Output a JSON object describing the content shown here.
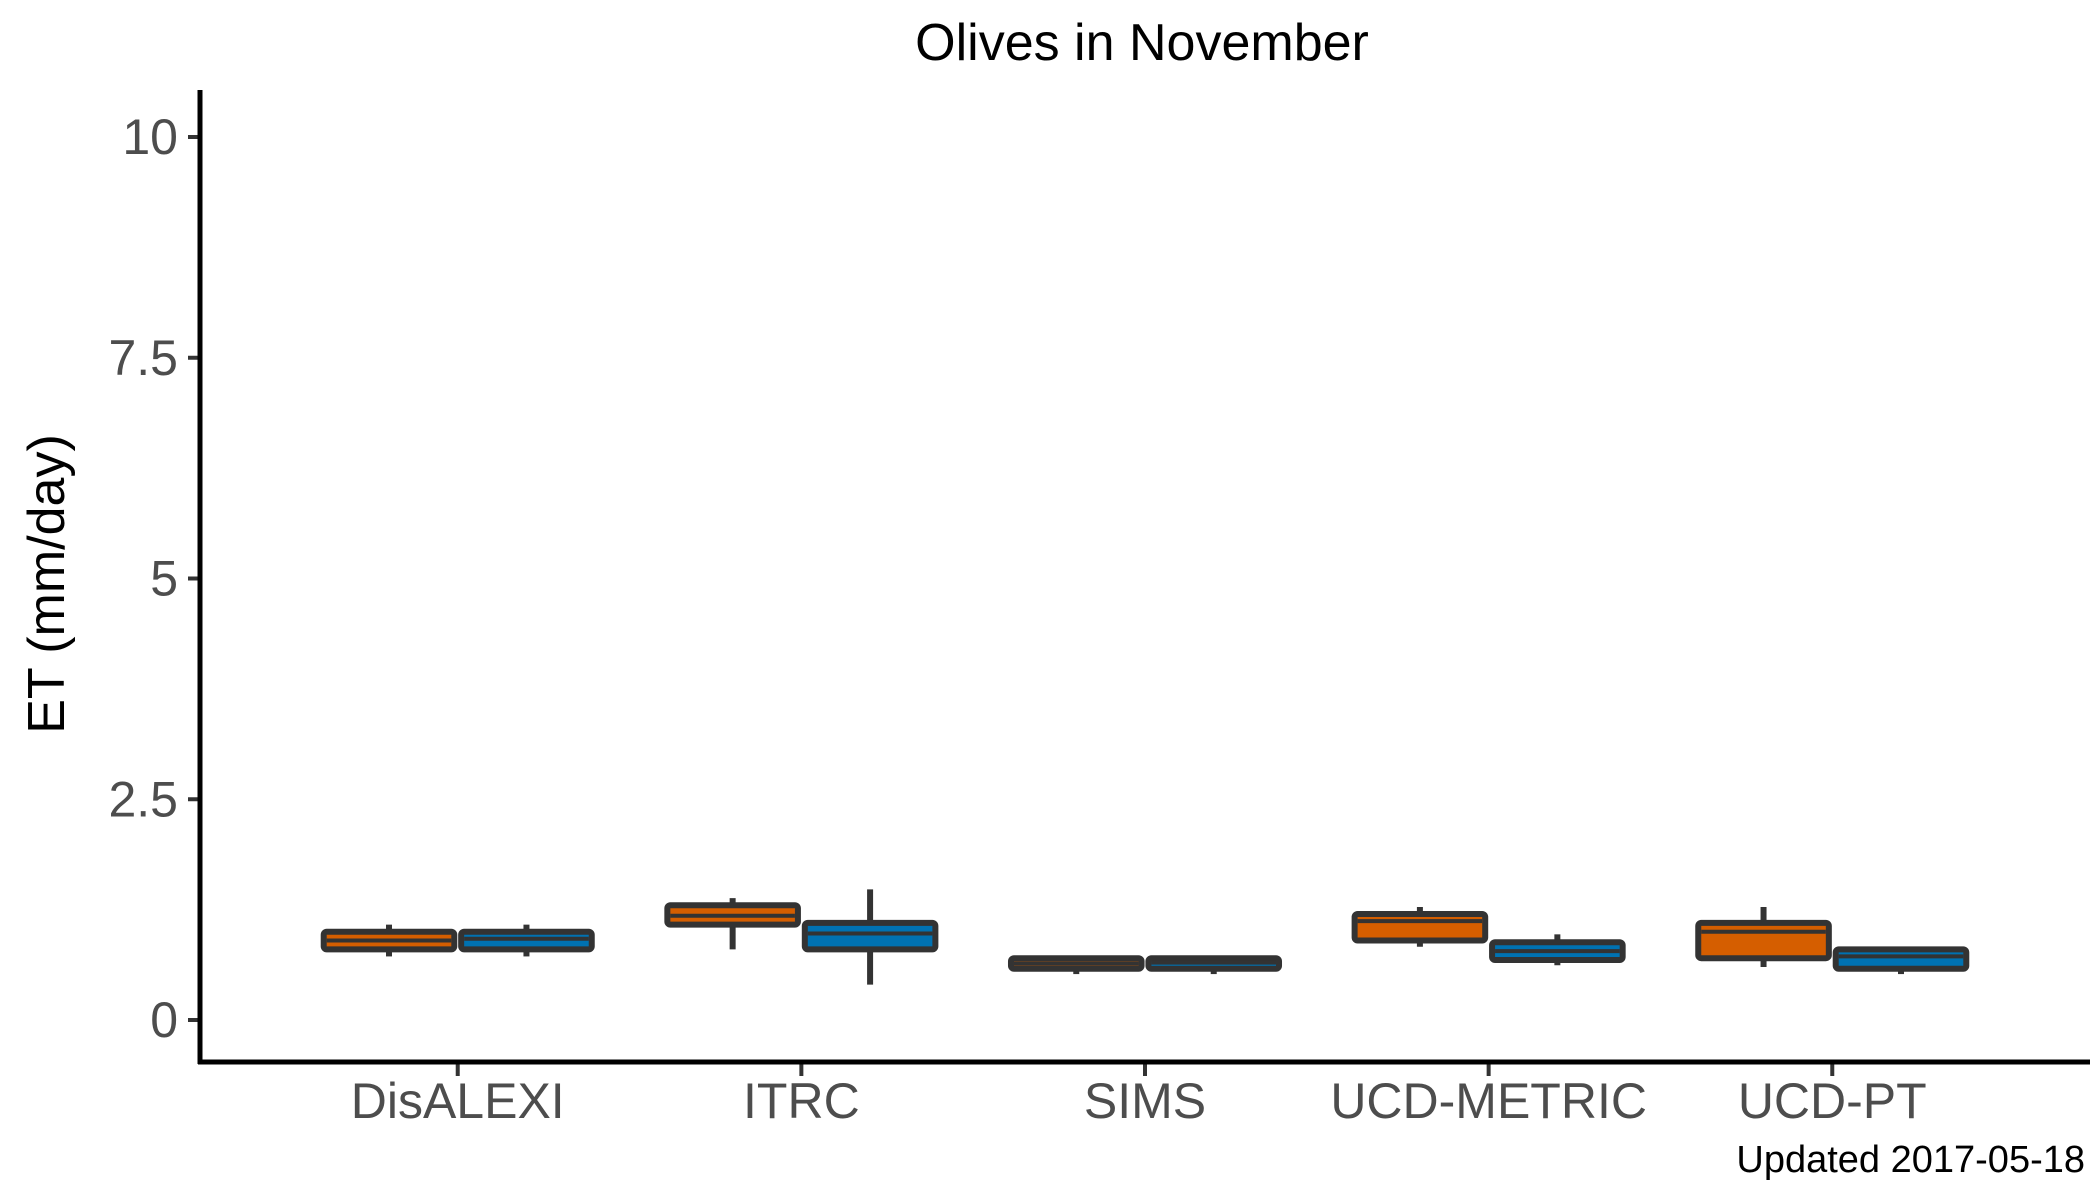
{
  "chart_data": {
    "type": "boxplot",
    "title": "Olives in November",
    "xlabel": "",
    "ylabel": "ET (mm/day)",
    "ylim": [
      -0.5,
      10.5
    ],
    "yticks": [
      0,
      2.5,
      5,
      7.5,
      10
    ],
    "ytick_labels": [
      "0",
      "2.5",
      "5",
      "7.5",
      "10"
    ],
    "grid": false,
    "legend": "none",
    "categories": [
      "DisALEXI",
      "ITRC",
      "SIMS",
      "UCD-METRIC",
      "UCD-PT"
    ],
    "series": [
      {
        "color": "#D55E00",
        "boxes": [
          {
            "min": 0.72,
            "q1": 0.8,
            "median": 0.9,
            "q3": 1.0,
            "max": 1.08
          },
          {
            "min": 0.8,
            "q1": 1.08,
            "median": 1.18,
            "q3": 1.3,
            "max": 1.38
          },
          {
            "min": 0.52,
            "q1": 0.58,
            "median": 0.64,
            "q3": 0.7,
            "max": 0.72
          },
          {
            "min": 0.83,
            "q1": 0.9,
            "median": 1.12,
            "q3": 1.2,
            "max": 1.28
          },
          {
            "min": 0.6,
            "q1": 0.7,
            "median": 1.0,
            "q3": 1.1,
            "max": 1.28
          }
        ]
      },
      {
        "color": "#0072B2",
        "boxes": [
          {
            "min": 0.72,
            "q1": 0.8,
            "median": 0.92,
            "q3": 1.0,
            "max": 1.08
          },
          {
            "min": 0.4,
            "q1": 0.8,
            "median": 0.98,
            "q3": 1.1,
            "max": 1.48
          },
          {
            "min": 0.52,
            "q1": 0.58,
            "median": 0.65,
            "q3": 0.7,
            "max": 0.72
          },
          {
            "min": 0.62,
            "q1": 0.68,
            "median": 0.78,
            "q3": 0.88,
            "max": 0.97
          },
          {
            "min": 0.52,
            "q1": 0.58,
            "median": 0.72,
            "q3": 0.8,
            "max": 0.82
          }
        ]
      }
    ],
    "annotation": "Updated  2017-05-18"
  }
}
